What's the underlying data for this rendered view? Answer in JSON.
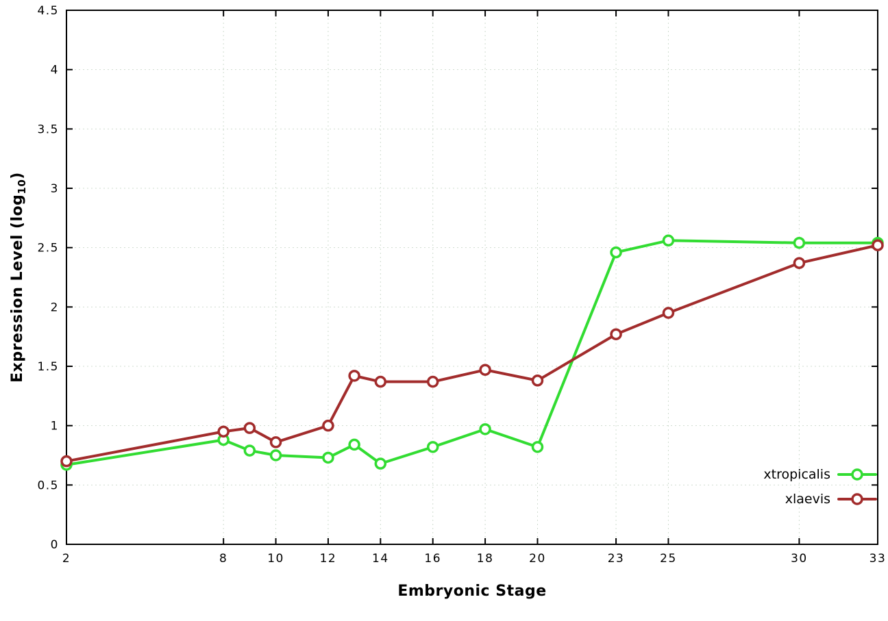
{
  "chart_data": {
    "type": "line",
    "xlabel": "Embryonic Stage",
    "ylabel": "Expression Level (log10)",
    "ylabel_parts": {
      "main": "Expression Level (log",
      "sub": "10",
      "close": ")"
    },
    "x": [
      2,
      8,
      9,
      10,
      12,
      13,
      14,
      16,
      18,
      20,
      23,
      25,
      30,
      33
    ],
    "series": [
      {
        "name": "xtropicalis",
        "color": "#32dc32",
        "values": [
          0.67,
          0.88,
          0.79,
          0.75,
          0.73,
          0.84,
          0.68,
          0.82,
          0.97,
          0.82,
          2.46,
          2.56,
          2.54,
          2.54
        ]
      },
      {
        "name": "xlaevis",
        "color": "#a22c2c",
        "values": [
          0.7,
          0.95,
          0.98,
          0.86,
          1.0,
          1.42,
          1.37,
          1.37,
          1.47,
          1.38,
          1.77,
          1.95,
          2.37,
          2.52
        ]
      }
    ],
    "xlim": [
      2,
      33
    ],
    "ylim": [
      0,
      4.5
    ],
    "xticks": [
      2,
      8,
      10,
      12,
      14,
      16,
      18,
      20,
      23,
      25,
      30,
      33
    ],
    "xtick_labels": [
      "2",
      "8",
      "10",
      "12",
      "14",
      "16",
      "18",
      "20",
      "23",
      "25",
      "30",
      "33"
    ],
    "yticks": [
      0,
      0.5,
      1,
      1.5,
      2,
      2.5,
      3,
      3.5,
      4,
      4.5
    ],
    "ytick_labels": [
      "0",
      "0.5",
      "1",
      "1.5",
      "2",
      "2.5",
      "3",
      "3.5",
      "4",
      "4.5"
    ],
    "grid": true,
    "grid_color": "#cfdccf",
    "border_color": "#000000",
    "legend_position": "bottom-right",
    "legend": [
      "xtropicalis",
      "xlaevis"
    ]
  }
}
